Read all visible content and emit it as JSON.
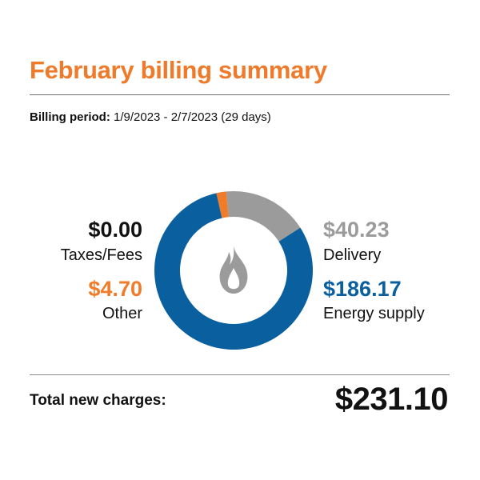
{
  "header": {
    "title": "February billing summary"
  },
  "billing_period": {
    "label": "Billing period:",
    "value": "1/9/2023 - 2/7/2023 (29 days)"
  },
  "charges": {
    "taxes_fees": {
      "amount": "$0.00",
      "label": "Taxes/Fees",
      "value": 0.0,
      "color": "#111111"
    },
    "other": {
      "amount": "$4.70",
      "label": "Other",
      "value": 4.7,
      "color": "#f07b28"
    },
    "delivery": {
      "amount": "$40.23",
      "label": "Delivery",
      "value": 40.23,
      "color": "#9b9b9b"
    },
    "energy_supply": {
      "amount": "$186.17",
      "label": "Energy supply",
      "value": 186.17,
      "color": "#0a5f9f"
    }
  },
  "total": {
    "label": "Total new charges:",
    "amount": "$231.10"
  },
  "icons": {
    "center": "flame-icon"
  },
  "chart_data": {
    "type": "pie",
    "categories": [
      "Other",
      "Delivery",
      "Energy supply",
      "Taxes/Fees"
    ],
    "values": [
      4.7,
      40.23,
      186.17,
      0.0
    ],
    "colors": [
      "#f07b28",
      "#9b9b9b",
      "#0a5f9f",
      "#111111"
    ],
    "title": ""
  }
}
